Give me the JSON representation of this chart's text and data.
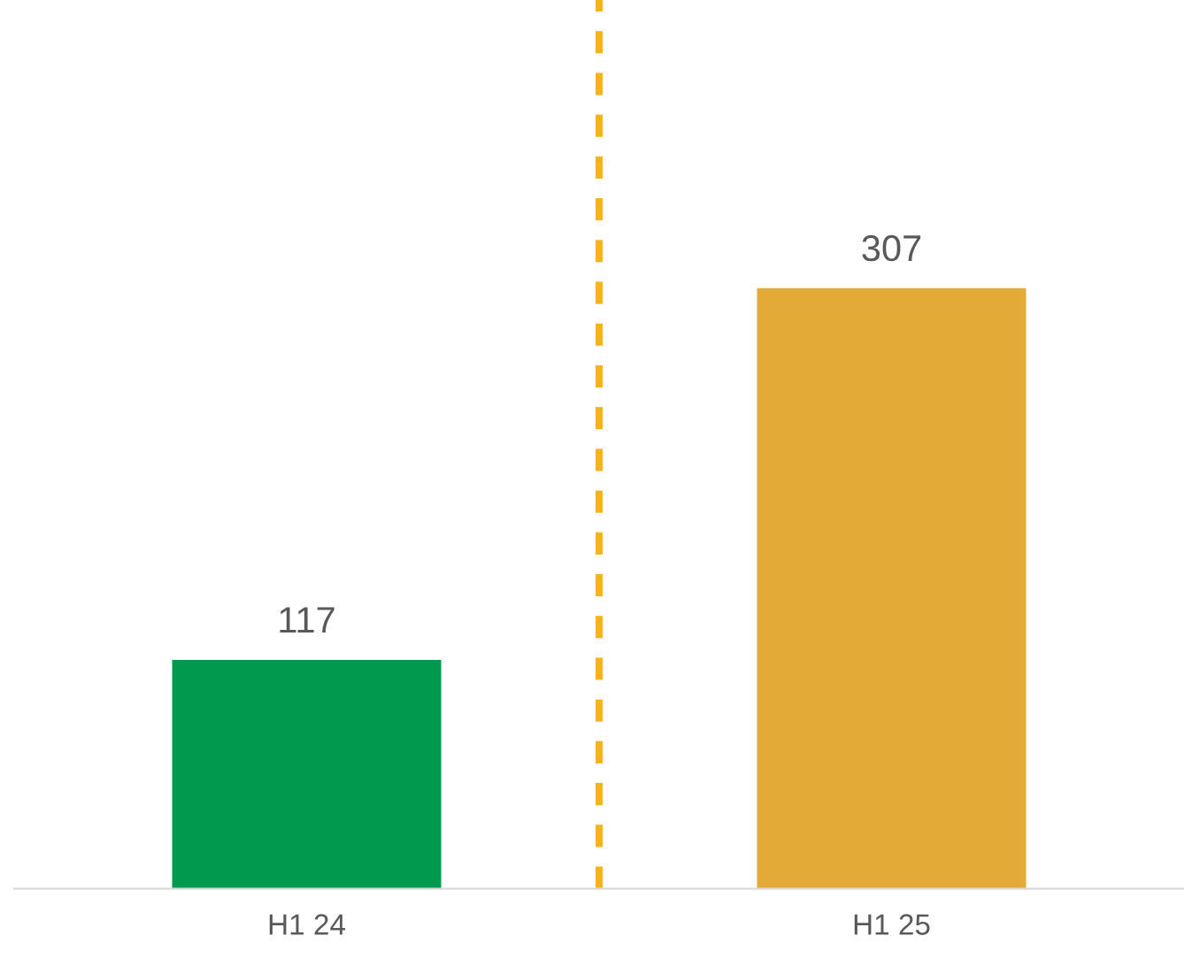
{
  "chart_data": {
    "type": "bar",
    "categories": [
      "H1 24",
      "H1 25"
    ],
    "values": [
      117,
      307
    ],
    "colors": [
      "#00994d",
      "#e3aa38"
    ],
    "data_labels": true,
    "grid": false,
    "legend": false
  }
}
